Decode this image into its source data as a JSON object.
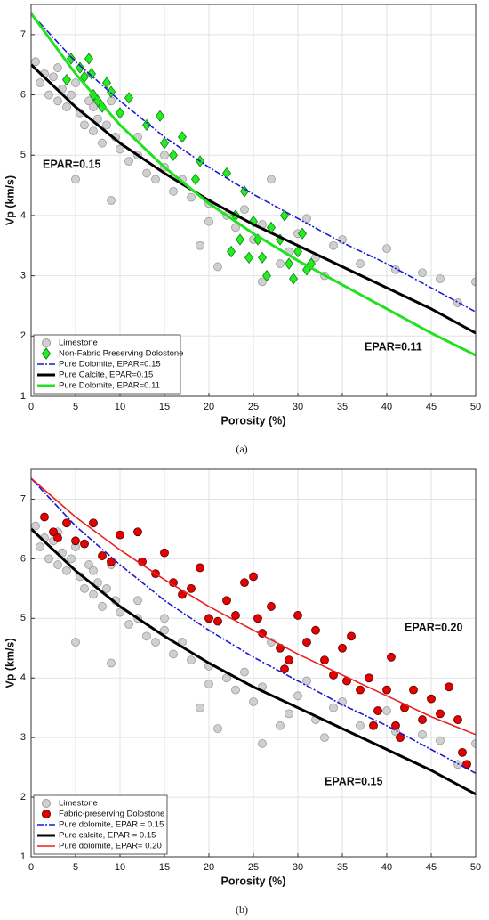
{
  "chart_data": [
    {
      "type": "scatter",
      "caption": "(a)",
      "xlabel": "Porosity (%)",
      "ylabel": "Vp (km/s)",
      "xlim": [
        0,
        50
      ],
      "ylim": [
        1,
        7.5
      ],
      "xticks": [
        0,
        5,
        10,
        15,
        20,
        25,
        30,
        35,
        40,
        45,
        50
      ],
      "yticks": [
        1,
        2,
        3,
        4,
        5,
        6,
        7
      ],
      "grid": true,
      "legend": "lower left",
      "annotations": [
        {
          "text": "EPAR=0.15",
          "color": "#000000"
        },
        {
          "text": "EPAR=0.11",
          "color": "#22e022"
        }
      ],
      "series": [
        {
          "name": "Limestone",
          "kind": "scatter",
          "marker": "circle",
          "color": "#d0d0d0",
          "x": [
            0.5,
            1,
            1.5,
            2,
            2.5,
            3,
            3.5,
            4,
            4.5,
            5,
            5.5,
            6,
            6.5,
            7,
            7.5,
            8,
            8.5,
            9,
            9.5,
            10,
            11,
            12,
            13,
            14,
            15,
            16,
            17,
            18,
            19,
            20,
            21,
            22,
            23,
            24,
            25,
            26,
            27,
            28,
            29,
            30,
            31,
            32,
            33,
            34,
            35,
            37,
            40,
            41,
            44,
            46,
            48,
            50,
            5,
            9,
            12,
            15,
            20,
            26,
            3,
            7
          ],
          "values": [
            6.55,
            6.2,
            6.35,
            6.0,
            6.3,
            5.9,
            6.1,
            5.8,
            6.0,
            4.6,
            5.7,
            5.5,
            5.9,
            5.4,
            5.6,
            5.2,
            5.5,
            4.25,
            5.3,
            5.1,
            4.9,
            5.0,
            4.7,
            4.6,
            4.8,
            4.4,
            4.6,
            4.3,
            3.5,
            4.2,
            3.15,
            4.0,
            3.8,
            4.1,
            3.6,
            2.9,
            4.6,
            3.2,
            3.4,
            3.7,
            3.95,
            3.3,
            3.0,
            3.5,
            3.6,
            3.2,
            3.45,
            3.1,
            3.05,
            2.95,
            2.55,
            2.9,
            6.2,
            5.9,
            5.3,
            5.0,
            3.9,
            3.85,
            6.45,
            5.8
          ]
        },
        {
          "name": "Non-Fabric Preserving Dolostone",
          "kind": "scatter",
          "marker": "diamond",
          "color": "#22ee22",
          "x": [
            4,
            4.5,
            5.5,
            6,
            6.5,
            6.8,
            7,
            7.5,
            8,
            8.5,
            9,
            10,
            11,
            13,
            14.5,
            15,
            16,
            17,
            18.5,
            19,
            22,
            23,
            23.5,
            24,
            24.5,
            25,
            25.5,
            26,
            26.5,
            27,
            28,
            28.5,
            29,
            30,
            30.5,
            31,
            31.5,
            29.5,
            22.5
          ],
          "values": [
            6.25,
            6.6,
            6.45,
            6.3,
            6.6,
            6.35,
            6.0,
            5.9,
            5.8,
            6.2,
            6.05,
            5.7,
            5.95,
            5.5,
            5.65,
            5.2,
            5.0,
            5.3,
            4.6,
            4.9,
            4.7,
            4.0,
            3.6,
            4.4,
            3.3,
            3.9,
            3.6,
            3.3,
            3.0,
            3.8,
            3.6,
            4.0,
            3.2,
            3.4,
            3.7,
            3.1,
            3.2,
            2.95,
            3.4
          ]
        },
        {
          "name": "Pure Dolomite, EPAR=0.15",
          "kind": "line",
          "linestyle": "dashdot",
          "color": "#1a1ad0",
          "x": [
            0,
            5,
            10,
            15,
            20,
            25,
            30,
            35,
            40,
            45,
            50
          ],
          "values": [
            7.35,
            6.55,
            5.9,
            5.3,
            4.8,
            4.35,
            3.95,
            3.55,
            3.2,
            2.8,
            2.4
          ]
        },
        {
          "name": "Pure Calcite, EPAR=0.15",
          "kind": "line",
          "linestyle": "solid",
          "linewidth": 3,
          "color": "#000000",
          "x": [
            0,
            5,
            10,
            15,
            20,
            25,
            30,
            35,
            40,
            45,
            50
          ],
          "values": [
            6.5,
            5.8,
            5.2,
            4.7,
            4.25,
            3.85,
            3.5,
            3.15,
            2.8,
            2.45,
            2.05
          ]
        },
        {
          "name": "Pure Dolomite, EPAR=0.11",
          "kind": "line",
          "linestyle": "solid",
          "linewidth": 3,
          "color": "#22e022",
          "x": [
            0,
            5,
            10,
            15,
            20,
            25,
            30,
            35,
            40,
            45,
            50
          ],
          "values": [
            7.35,
            6.35,
            5.5,
            4.8,
            4.2,
            3.7,
            3.25,
            2.85,
            2.45,
            2.05,
            1.68
          ]
        }
      ]
    },
    {
      "type": "scatter",
      "caption": "(b)",
      "xlabel": "Porosity (%)",
      "ylabel": "Vp (km/s)",
      "xlim": [
        0,
        50
      ],
      "ylim": [
        1,
        7.5
      ],
      "xticks": [
        0,
        5,
        10,
        15,
        20,
        25,
        30,
        35,
        40,
        45,
        50
      ],
      "yticks": [
        1,
        2,
        3,
        4,
        5,
        6,
        7
      ],
      "grid": true,
      "legend": "lower left",
      "annotations": [
        {
          "text": "EPAR=0.20",
          "color": "#e82020"
        },
        {
          "text": "EPAR=0.15",
          "color": "#000000"
        }
      ],
      "series": [
        {
          "name": "Limestone",
          "kind": "scatter",
          "marker": "circle",
          "color": "#d0d0d0",
          "x": [
            0.5,
            1,
            1.5,
            2,
            2.5,
            3,
            3.5,
            4,
            4.5,
            5,
            5.5,
            6,
            6.5,
            7,
            7.5,
            8,
            8.5,
            9,
            9.5,
            10,
            11,
            12,
            13,
            14,
            15,
            16,
            17,
            18,
            19,
            20,
            21,
            22,
            23,
            24,
            25,
            26,
            27,
            28,
            29,
            30,
            31,
            32,
            33,
            34,
            35,
            37,
            40,
            41,
            44,
            46,
            48,
            50,
            5,
            9,
            12,
            15,
            20,
            26,
            3,
            7
          ],
          "values": [
            6.55,
            6.2,
            6.35,
            6.0,
            6.3,
            5.9,
            6.1,
            5.8,
            6.0,
            4.6,
            5.7,
            5.5,
            5.9,
            5.4,
            5.6,
            5.2,
            5.5,
            4.25,
            5.3,
            5.1,
            4.9,
            5.0,
            4.7,
            4.6,
            4.8,
            4.4,
            4.6,
            4.3,
            3.5,
            4.2,
            3.15,
            4.0,
            3.8,
            4.1,
            3.6,
            2.9,
            4.6,
            3.2,
            3.4,
            3.7,
            3.95,
            3.3,
            3.0,
            3.5,
            3.6,
            3.2,
            3.45,
            3.1,
            3.05,
            2.95,
            2.55,
            2.9,
            6.2,
            5.9,
            5.3,
            5.0,
            3.9,
            3.85,
            6.45,
            5.8
          ]
        },
        {
          "name": "Fabric-preserving Dolostone",
          "kind": "scatter",
          "marker": "circle",
          "color": "#e80000",
          "x": [
            1.5,
            2.5,
            3,
            4,
            5,
            6,
            7,
            8,
            9,
            10,
            12,
            12.5,
            14,
            15,
            16,
            17,
            18,
            19,
            20,
            21,
            22,
            23,
            24,
            25,
            25.5,
            26,
            27,
            28,
            29,
            30,
            31,
            32,
            33,
            34,
            35,
            36,
            37,
            38,
            39,
            40,
            40.5,
            41,
            42,
            43,
            44,
            45,
            46,
            47,
            48,
            48.5,
            49,
            41.5,
            38.5,
            35.5,
            28.5
          ],
          "values": [
            6.7,
            6.45,
            6.35,
            6.6,
            6.3,
            6.25,
            6.6,
            6.05,
            5.95,
            6.4,
            6.45,
            5.95,
            5.75,
            6.1,
            5.6,
            5.4,
            5.5,
            5.85,
            5.0,
            4.95,
            5.3,
            5.05,
            5.6,
            5.7,
            5.0,
            4.75,
            5.2,
            4.5,
            4.3,
            5.05,
            4.6,
            4.8,
            4.3,
            4.05,
            4.5,
            4.7,
            3.8,
            4.0,
            3.45,
            3.8,
            4.35,
            3.2,
            3.5,
            3.8,
            3.3,
            3.65,
            3.4,
            3.85,
            3.3,
            2.75,
            2.55,
            3.0,
            3.2,
            3.95,
            4.15
          ]
        },
        {
          "name": "Pure dolomite, EPAR = 0.15",
          "kind": "line",
          "linestyle": "dashdot",
          "color": "#1a1ad0",
          "x": [
            0,
            5,
            10,
            15,
            20,
            25,
            30,
            35,
            40,
            45,
            50
          ],
          "values": [
            7.35,
            6.55,
            5.9,
            5.3,
            4.8,
            4.35,
            3.95,
            3.55,
            3.2,
            2.8,
            2.4
          ]
        },
        {
          "name": "Pure calcite, EPAR = 0.15",
          "kind": "line",
          "linestyle": "solid",
          "linewidth": 3,
          "color": "#000000",
          "x": [
            0,
            5,
            10,
            15,
            20,
            25,
            30,
            35,
            40,
            45,
            50
          ],
          "values": [
            6.5,
            5.8,
            5.2,
            4.7,
            4.25,
            3.85,
            3.5,
            3.15,
            2.8,
            2.45,
            2.05
          ]
        },
        {
          "name": "Pure dolomite, EPAR= 0.20",
          "kind": "line",
          "linestyle": "solid",
          "color": "#e82020",
          "x": [
            0,
            5,
            10,
            15,
            20,
            25,
            30,
            35,
            40,
            45,
            50
          ],
          "values": [
            7.35,
            6.7,
            6.15,
            5.65,
            5.2,
            4.8,
            4.4,
            4.05,
            3.7,
            3.35,
            3.05
          ]
        }
      ]
    }
  ]
}
